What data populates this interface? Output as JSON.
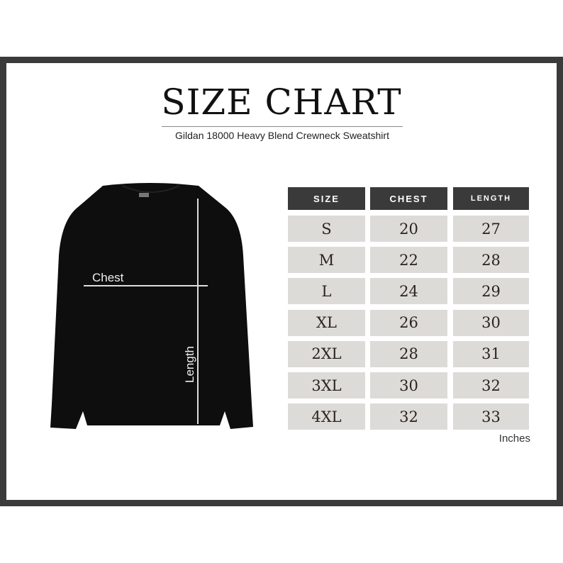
{
  "title": "SIZE CHART",
  "subtitle": "Gildan 18000 Heavy Blend Crewneck Sweatshirt",
  "diagram": {
    "chest_label": "Chest",
    "length_label": "Length"
  },
  "table": {
    "headers": [
      "SIZE",
      "CHEST",
      "LENGTH"
    ],
    "rows": [
      [
        "S",
        "20",
        "27"
      ],
      [
        "M",
        "22",
        "28"
      ],
      [
        "L",
        "24",
        "29"
      ],
      [
        "XL",
        "26",
        "30"
      ],
      [
        "2XL",
        "28",
        "31"
      ],
      [
        "3XL",
        "30",
        "32"
      ],
      [
        "4XL",
        "32",
        "33"
      ]
    ]
  },
  "unit": "Inches",
  "colors": {
    "frame": "#3b3b3b",
    "header": "#3a3a3a",
    "cell": "#dddbd8"
  }
}
